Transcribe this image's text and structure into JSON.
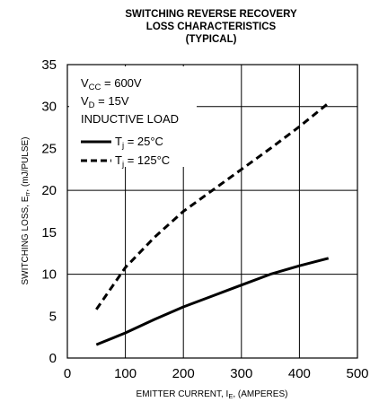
{
  "chart_data": {
    "type": "line",
    "title": "SWITCHING REVERSE RECOVERY",
    "title_line2": "LOSS CHARACTERISTICS",
    "title_line3": "(TYPICAL)",
    "xlabel_prefix": "EMITTER CURRENT, I",
    "xlabel_sub": "E",
    "xlabel_suffix": ", (AMPERES)",
    "ylabel_prefix": "SWITCHING LOSS, E",
    "ylabel_sub": "rr",
    "ylabel_suffix": ", (mJ/PULSE)",
    "xlim": [
      0,
      500
    ],
    "ylim": [
      0,
      35
    ],
    "x_ticks": [
      "0",
      "100",
      "200",
      "300",
      "400",
      "500"
    ],
    "y_ticks": [
      "0",
      "5",
      "10",
      "15",
      "20",
      "25",
      "30",
      "35"
    ],
    "grid": true,
    "conditions": {
      "vcc_prefix": "V",
      "vcc_sub": "CC",
      "vcc_value": " = 600V",
      "vd_prefix": "V",
      "vd_sub": "D",
      "vd_value": " = 15V",
      "load": "INDUCTIVE LOAD"
    },
    "series": [
      {
        "name_prefix": "T",
        "name_sub": "j",
        "name_value": " = 25°C",
        "style": "solid",
        "x": [
          50,
          100,
          150,
          200,
          250,
          300,
          350,
          400,
          450
        ],
        "y": [
          1.6,
          3.0,
          4.6,
          6.1,
          7.4,
          8.7,
          10.0,
          11.0,
          11.9
        ]
      },
      {
        "name_prefix": "T",
        "name_sub": "j",
        "name_value": " = 125°C",
        "style": "dashed",
        "x": [
          50,
          100,
          150,
          200,
          250,
          300,
          350,
          400,
          450
        ],
        "y": [
          5.8,
          10.8,
          14.4,
          17.5,
          20.0,
          22.5,
          25.0,
          27.6,
          30.4
        ]
      }
    ]
  }
}
